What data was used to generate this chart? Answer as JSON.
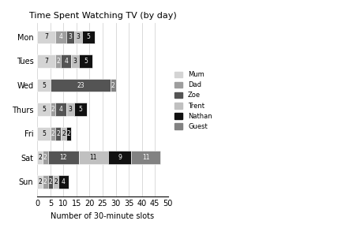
{
  "title": "Time Spent Watching TV (by day)",
  "xlabel": "Number of 30-minute slots",
  "days": [
    "Mon",
    "Tues",
    "Wed",
    "Thurs",
    "Fri",
    "Sat",
    "Sun"
  ],
  "series": {
    "Mum": [
      7,
      7,
      5,
      5,
      5,
      2,
      2
    ],
    "Dad": [
      4,
      2,
      0,
      2,
      2,
      2,
      2
    ],
    "Zoe": [
      3,
      4,
      23,
      4,
      2,
      12,
      2
    ],
    "Trent": [
      3,
      3,
      0,
      3,
      2,
      11,
      2
    ],
    "Nathan": [
      5,
      5,
      0,
      5,
      2,
      9,
      4
    ],
    "Guest": [
      0,
      0,
      2,
      0,
      0,
      11,
      0
    ]
  },
  "colors": {
    "Mum": "#d4d4d4",
    "Dad": "#9e9e9e",
    "Zoe": "#545454",
    "Trent": "#c0c0c0",
    "Nathan": "#111111",
    "Guest": "#828282"
  },
  "text_colors": {
    "Mum": "black",
    "Dad": "white",
    "Zoe": "white",
    "Trent": "black",
    "Nathan": "white",
    "Guest": "white"
  },
  "xlim": [
    0,
    50
  ],
  "xticks": [
    0,
    5,
    10,
    15,
    20,
    25,
    30,
    35,
    40,
    45,
    50
  ],
  "bar_height": 0.55,
  "background_color": "#ffffff",
  "grid_color": "#cccccc"
}
